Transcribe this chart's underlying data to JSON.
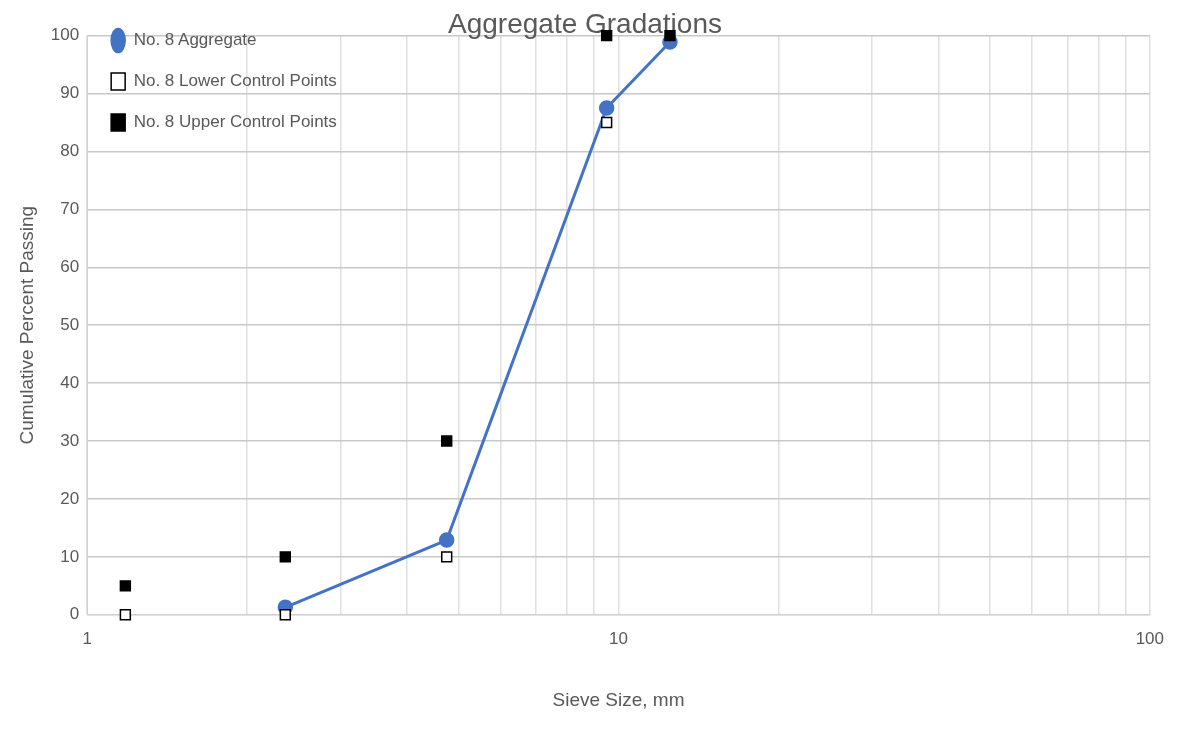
{
  "chart_data": {
    "type": "scatter",
    "title": "Aggregate Gradations",
    "xlabel": "Sieve Size, mm",
    "ylabel": "Cumulative Percent Passing",
    "log": "x",
    "xlim": [
      1,
      100
    ],
    "ylim": [
      0,
      100
    ],
    "xticks": [
      1,
      {
        "value": 2,
        "label": null
      },
      {
        "value": 3,
        "label": null
      },
      {
        "value": 4,
        "label": null
      },
      {
        "value": 5,
        "label": null
      },
      {
        "value": 6,
        "label": null
      },
      {
        "value": 7,
        "label": null
      },
      {
        "value": 8,
        "label": null
      },
      {
        "value": 9,
        "label": null
      },
      10,
      {
        "value": 20,
        "label": null
      },
      {
        "value": 30,
        "label": null
      },
      {
        "value": 40,
        "label": null
      },
      {
        "value": 50,
        "label": null
      },
      {
        "value": 60,
        "label": null
      },
      {
        "value": 70,
        "label": null
      },
      {
        "value": 80,
        "label": null
      },
      {
        "value": 90,
        "label": null
      },
      100
    ],
    "yticks": [
      0,
      10,
      20,
      30,
      40,
      50,
      60,
      70,
      80,
      90,
      100
    ],
    "grid": true,
    "legend": "top left",
    "series": [
      {
        "name": "No. 8 Aggregate",
        "type": "line",
        "marker": "circle",
        "line_style": "solid",
        "color": "#4472c4",
        "x": [
          2.36,
          4.75,
          9.5,
          12.5
        ],
        "values": [
          1.3,
          12.9,
          87.5,
          98.9
        ]
      },
      {
        "name": "No. 8 Lower Control Points",
        "marker": "square",
        "color": "#ffffff",
        "x": [
          1.18,
          2.36,
          4.75,
          9.5
        ],
        "values": [
          0,
          0,
          10,
          85
        ]
      },
      {
        "name": "No. 8 Upper Control Points",
        "marker": "square",
        "color": "#000000",
        "x": [
          1.18,
          2.36,
          4.75,
          9.5,
          12.5
        ],
        "values": [
          5,
          10,
          30,
          100,
          100
        ]
      }
    ]
  }
}
